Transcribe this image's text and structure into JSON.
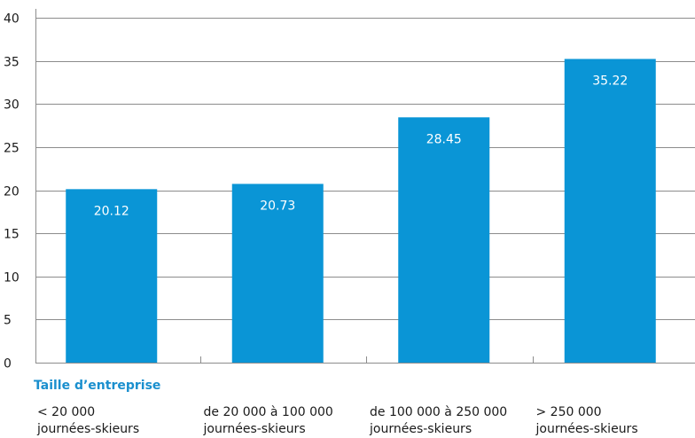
{
  "chart_data": {
    "type": "bar",
    "xlabel": "Taille d’entreprise",
    "ylabel": "",
    "ylim": [
      0,
      40
    ],
    "yticks": [
      "0",
      "5",
      "10",
      "15",
      "20",
      "25",
      "30",
      "35",
      "40"
    ],
    "grid": true,
    "categories": [
      [
        "< 20 000",
        "journées-skieurs"
      ],
      [
        "de 20 000 à 100 000",
        "journées-skieurs"
      ],
      [
        "de 100 000 à 250 000",
        "journées-skieurs"
      ],
      [
        "> 250 000",
        "journées-skieurs"
      ]
    ],
    "values": [
      20.12,
      20.73,
      28.45,
      35.22
    ],
    "value_labels": [
      "20.12",
      "20.73",
      "28.45",
      "35.22"
    ],
    "colors": {
      "bar": "#0a95d6",
      "title": "#1a8fce",
      "grid": "#8c8c8c"
    }
  }
}
